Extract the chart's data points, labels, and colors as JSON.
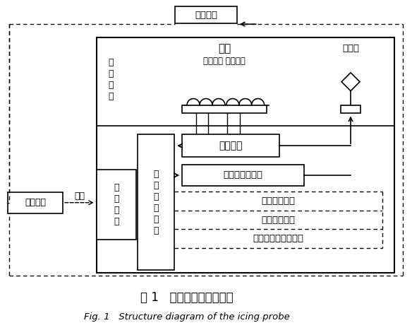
{
  "title_zh": "图 1   结冰探测器结构框图",
  "title_en": "Fig. 1   Structure diagram of the icing probe",
  "bg_color": "#ffffff",
  "outer_device_top_label": "外围设备",
  "outer_device_left_label": "外围设备",
  "power_label": "供电",
  "decoder_label": "解\n算\n单\n元",
  "sensitive_label": "敏\n感\n单\n元",
  "signal_proc_label": "信\n号\n处\n理\n部\n件",
  "probe_label": "探头",
  "drive_coil_label": "驱动线圈 反馈线圈",
  "heater_label": "加热器",
  "oscillation_label": "振荡系统",
  "heater_ctrl_label": "加热器控制电路",
  "ice_alarm_label": "结冰告警信号",
  "ice_rate_label": "结冰速率信号",
  "ice_fault_label": "结冰探测器故障信号"
}
